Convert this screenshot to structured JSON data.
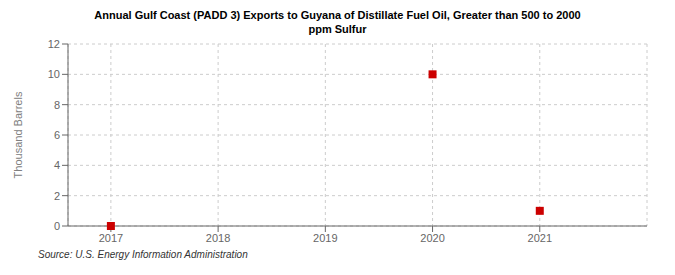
{
  "chart_data": {
    "type": "scatter",
    "title": "Annual Gulf Coast (PADD 3) Exports to Guyana of Distillate Fuel Oil, Greater than 500 to 2000\nppm Sulfur",
    "y_label": "Thousand Barrels",
    "annotations": [
      "Source: U.S. Energy Information Administration"
    ],
    "x": [
      2017,
      2020,
      2021
    ],
    "values": [
      0,
      10,
      1
    ],
    "color": "#cc0000",
    "marker": "square",
    "xlim": [
      2016.6,
      2022.0
    ],
    "ylim": [
      0,
      12
    ],
    "xticks": [
      2017,
      2018,
      2019,
      2020,
      2021
    ],
    "yticks": [
      0,
      2,
      4,
      6,
      8,
      10,
      12
    ],
    "grid": true
  }
}
